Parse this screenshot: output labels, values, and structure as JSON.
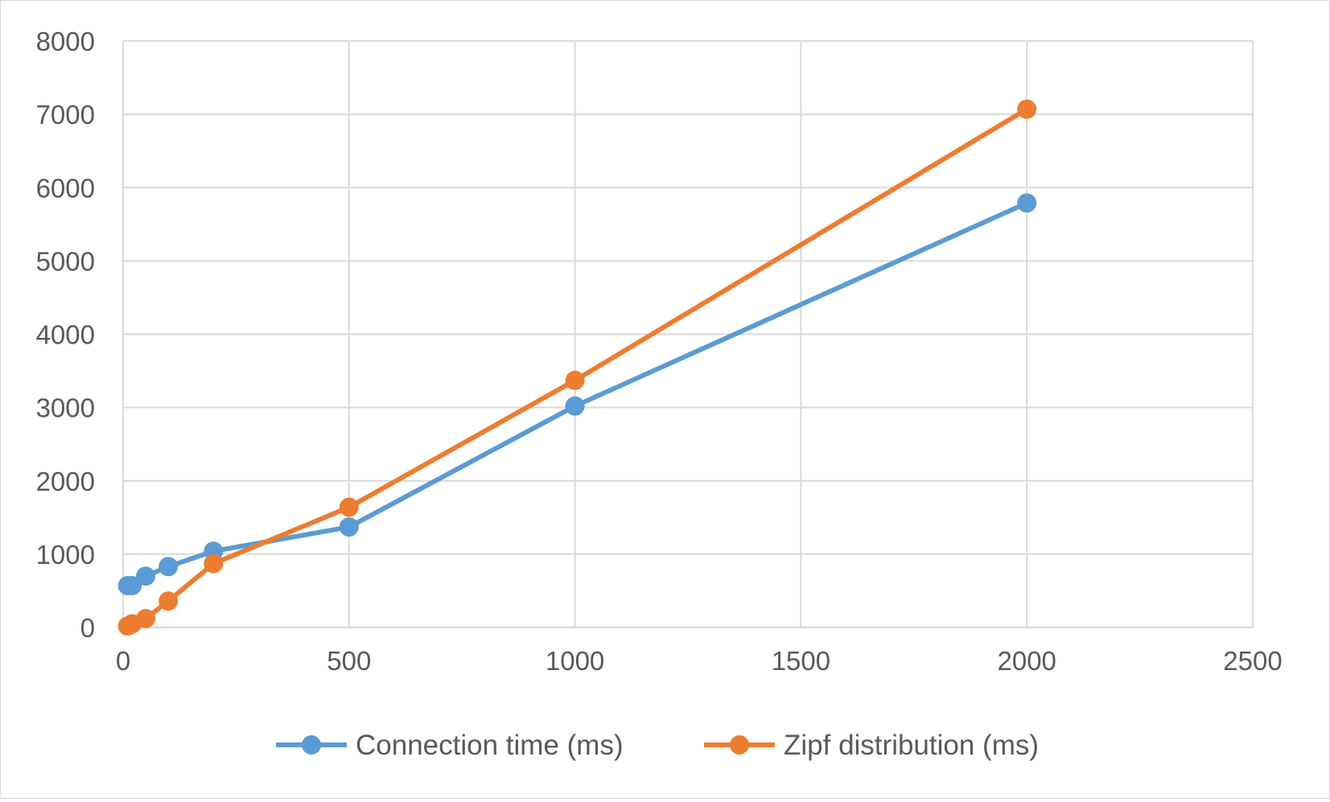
{
  "chart_data": {
    "type": "scatter",
    "title": "",
    "xlabel": "",
    "ylabel": "",
    "xlim": [
      0,
      2500
    ],
    "ylim": [
      0,
      8000
    ],
    "x_ticks": [
      0,
      500,
      1000,
      1500,
      2000,
      2500
    ],
    "y_ticks": [
      0,
      1000,
      2000,
      3000,
      4000,
      5000,
      6000,
      7000,
      8000
    ],
    "x_tick_labels": [
      "0",
      "500",
      "1000",
      "1500",
      "2000",
      "2500"
    ],
    "y_tick_labels": [
      "0",
      "1000",
      "2000",
      "3000",
      "4000",
      "5000",
      "6000",
      "7000",
      "8000"
    ],
    "grid": true,
    "legend_position": "bottom",
    "series": [
      {
        "name": "Connection time (ms)",
        "color": "#5b9bd5",
        "x": [
          10,
          20,
          50,
          100,
          200,
          500,
          1000,
          2000
        ],
        "y": [
          570,
          570,
          700,
          830,
          1040,
          1370,
          3020,
          5790
        ]
      },
      {
        "name": "Zipf distribution (ms)",
        "color": "#ed7d31",
        "x": [
          10,
          20,
          50,
          100,
          200,
          500,
          1000,
          2000
        ],
        "y": [
          20,
          50,
          120,
          360,
          870,
          1640,
          3370,
          7070
        ]
      }
    ]
  }
}
